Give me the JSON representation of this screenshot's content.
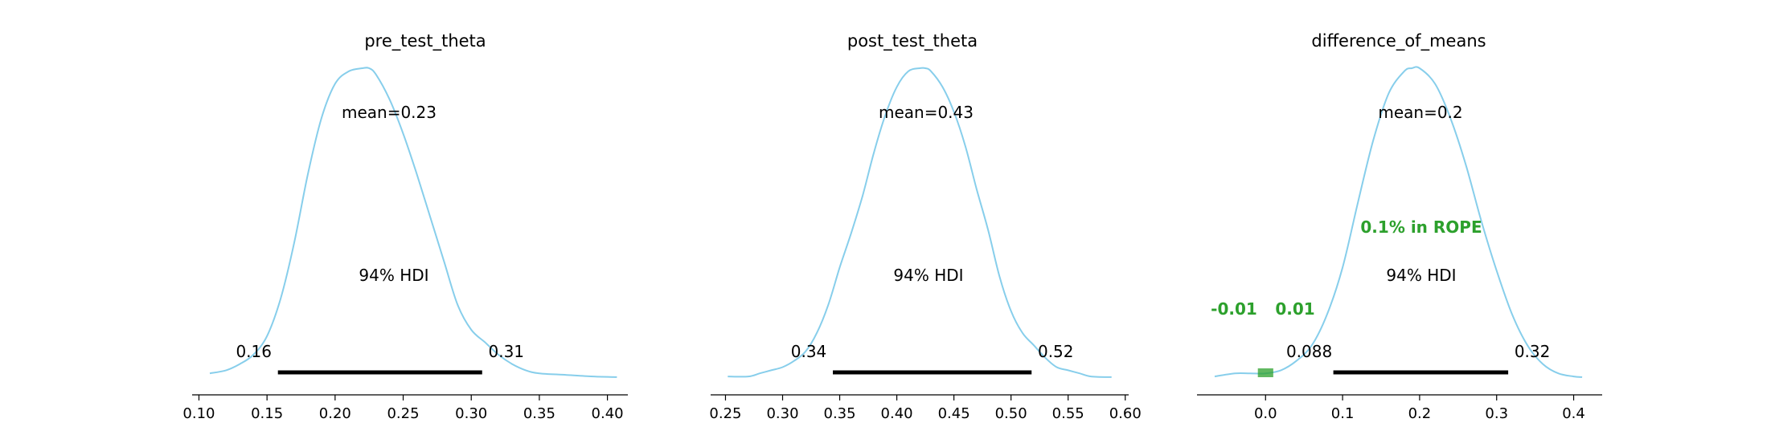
{
  "chart_data": [
    {
      "type": "area",
      "title": "pre_test_theta",
      "xlabel": "",
      "ylabel": "",
      "xlim": [
        0.095,
        0.415
      ],
      "ticks": [
        0.1,
        0.15,
        0.2,
        0.25,
        0.3,
        0.35,
        0.4
      ],
      "tick_labels": [
        "0.10",
        "0.15",
        "0.20",
        "0.25",
        "0.30",
        "0.35",
        "0.40"
      ],
      "kde_x": [
        0.108,
        0.12,
        0.13,
        0.14,
        0.15,
        0.16,
        0.17,
        0.18,
        0.19,
        0.2,
        0.21,
        0.22,
        0.225,
        0.23,
        0.24,
        0.25,
        0.26,
        0.27,
        0.28,
        0.29,
        0.3,
        0.31,
        0.32,
        0.33,
        0.34,
        0.35,
        0.37,
        0.39,
        0.407
      ],
      "kde_y": [
        0.02,
        0.03,
        0.05,
        0.08,
        0.14,
        0.26,
        0.44,
        0.66,
        0.84,
        0.95,
        0.99,
        1.0,
        1.0,
        0.98,
        0.9,
        0.79,
        0.66,
        0.52,
        0.38,
        0.24,
        0.16,
        0.12,
        0.08,
        0.05,
        0.03,
        0.02,
        0.015,
        0.01,
        0.008
      ],
      "mean_label": "mean=0.23",
      "hdi_label": "94% HDI",
      "hdi": [
        0.158,
        0.308
      ],
      "hdi_low_label": "0.16",
      "hdi_high_label": "0.31",
      "color": "#87ceeb"
    },
    {
      "type": "area",
      "title": "post_test_theta",
      "xlabel": "",
      "ylabel": "",
      "xlim": [
        0.237,
        0.603
      ],
      "ticks": [
        0.25,
        0.3,
        0.35,
        0.4,
        0.45,
        0.5,
        0.55,
        0.6
      ],
      "tick_labels": [
        "0.25",
        "0.30",
        "0.35",
        "0.40",
        "0.45",
        "0.50",
        "0.55",
        "0.60"
      ],
      "kde_x": [
        0.252,
        0.27,
        0.28,
        0.29,
        0.3,
        0.31,
        0.32,
        0.33,
        0.34,
        0.35,
        0.36,
        0.37,
        0.38,
        0.39,
        0.4,
        0.41,
        0.42,
        0.425,
        0.43,
        0.44,
        0.45,
        0.46,
        0.47,
        0.48,
        0.49,
        0.5,
        0.51,
        0.52,
        0.53,
        0.54,
        0.55,
        0.56,
        0.57,
        0.588
      ],
      "kde_y": [
        0.01,
        0.01,
        0.02,
        0.03,
        0.04,
        0.06,
        0.09,
        0.15,
        0.24,
        0.36,
        0.47,
        0.59,
        0.73,
        0.85,
        0.94,
        0.99,
        1.0,
        1.0,
        0.99,
        0.94,
        0.86,
        0.75,
        0.61,
        0.48,
        0.33,
        0.22,
        0.15,
        0.11,
        0.07,
        0.04,
        0.03,
        0.02,
        0.01,
        0.008
      ],
      "mean_label": "mean=0.43",
      "hdi_label": "94% HDI",
      "hdi": [
        0.344,
        0.518
      ],
      "hdi_low_label": "0.34",
      "hdi_high_label": "0.52",
      "color": "#87ceeb"
    },
    {
      "type": "area",
      "title": "difference_of_means",
      "xlabel": "",
      "ylabel": "",
      "xlim": [
        -0.089,
        0.437
      ],
      "ticks": [
        0.0,
        0.1,
        0.2,
        0.3,
        0.4
      ],
      "tick_labels": [
        "0.0",
        "0.1",
        "0.2",
        "0.3",
        "0.4"
      ],
      "kde_x": [
        -0.066,
        -0.04,
        -0.02,
        0.0,
        0.02,
        0.04,
        0.06,
        0.08,
        0.1,
        0.12,
        0.14,
        0.16,
        0.18,
        0.19,
        0.2,
        0.22,
        0.24,
        0.26,
        0.28,
        0.3,
        0.32,
        0.34,
        0.36,
        0.38,
        0.4,
        0.411
      ],
      "kde_y": [
        0.01,
        0.02,
        0.02,
        0.02,
        0.03,
        0.06,
        0.11,
        0.21,
        0.36,
        0.57,
        0.77,
        0.92,
        0.99,
        1.0,
        1.0,
        0.95,
        0.84,
        0.69,
        0.51,
        0.35,
        0.21,
        0.11,
        0.05,
        0.02,
        0.01,
        0.008
      ],
      "mean_label": "mean=0.2",
      "hdi_label": "94% HDI",
      "hdi": [
        0.088,
        0.315
      ],
      "hdi_low_label": "0.088",
      "hdi_high_label": "0.32",
      "rope": [
        -0.01,
        0.01
      ],
      "rope_low_label": "-0.01",
      "rope_high_label": "0.01",
      "rope_text": "0.1% in ROPE",
      "rope_color": "#2ca02c",
      "color": "#87ceeb"
    }
  ]
}
